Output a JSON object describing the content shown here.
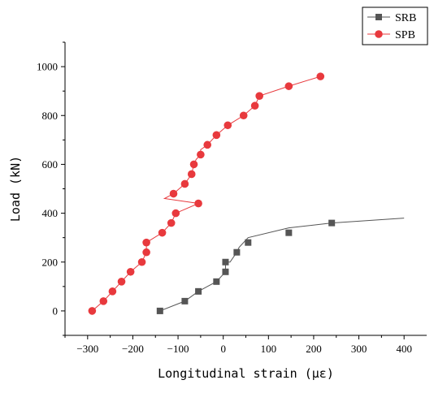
{
  "chart_data": {
    "type": "line",
    "xlabel": "Longitudinal strain (με)",
    "ylabel": "Load (kN)",
    "xlim": [
      -350,
      450
    ],
    "ylim": [
      -100,
      1100
    ],
    "x_ticks": [
      -300,
      -200,
      -100,
      0,
      100,
      200,
      300,
      400
    ],
    "y_ticks": [
      0,
      200,
      400,
      600,
      800,
      1000
    ],
    "grid": false,
    "legend_position": "top-right",
    "series": [
      {
        "name": "SRB",
        "color": "#555555",
        "marker": "square",
        "line_x": [
          -140,
          -85,
          -55,
          -15,
          5,
          5,
          15,
          30,
          35,
          55,
          145,
          240,
          400
        ],
        "line_y": [
          0,
          40,
          80,
          120,
          160,
          200,
          200,
          240,
          260,
          300,
          340,
          360,
          380
        ],
        "marker_x": [
          -140,
          -85,
          -55,
          -15,
          5,
          5,
          30,
          55,
          145,
          240
        ],
        "marker_y": [
          0,
          40,
          80,
          120,
          160,
          200,
          240,
          280,
          320,
          360
        ]
      },
      {
        "name": "SPB",
        "color": "#e8393d",
        "marker": "circle",
        "line_x": [
          -290,
          -265,
          -245,
          -225,
          -205,
          -180,
          -170,
          -170,
          -135,
          -115,
          -105,
          -55,
          -130,
          -110,
          -85,
          -70,
          -65,
          -60,
          -50,
          -50,
          -35,
          -15,
          10,
          45,
          70,
          80,
          145,
          215
        ],
        "line_y": [
          0,
          40,
          80,
          120,
          160,
          200,
          240,
          280,
          320,
          360,
          400,
          440,
          460,
          480,
          520,
          560,
          600,
          620,
          640,
          660,
          680,
          720,
          760,
          800,
          840,
          880,
          920,
          960
        ],
        "marker_x": [
          -290,
          -265,
          -245,
          -225,
          -205,
          -180,
          -170,
          -170,
          -135,
          -115,
          -105,
          -55,
          -110,
          -85,
          -70,
          -65,
          -50,
          -35,
          -15,
          10,
          45,
          70,
          80,
          145,
          215
        ],
        "marker_y": [
          0,
          40,
          80,
          120,
          160,
          200,
          240,
          280,
          320,
          360,
          400,
          440,
          480,
          520,
          560,
          600,
          640,
          680,
          720,
          760,
          800,
          840,
          880,
          920,
          960
        ]
      }
    ]
  }
}
